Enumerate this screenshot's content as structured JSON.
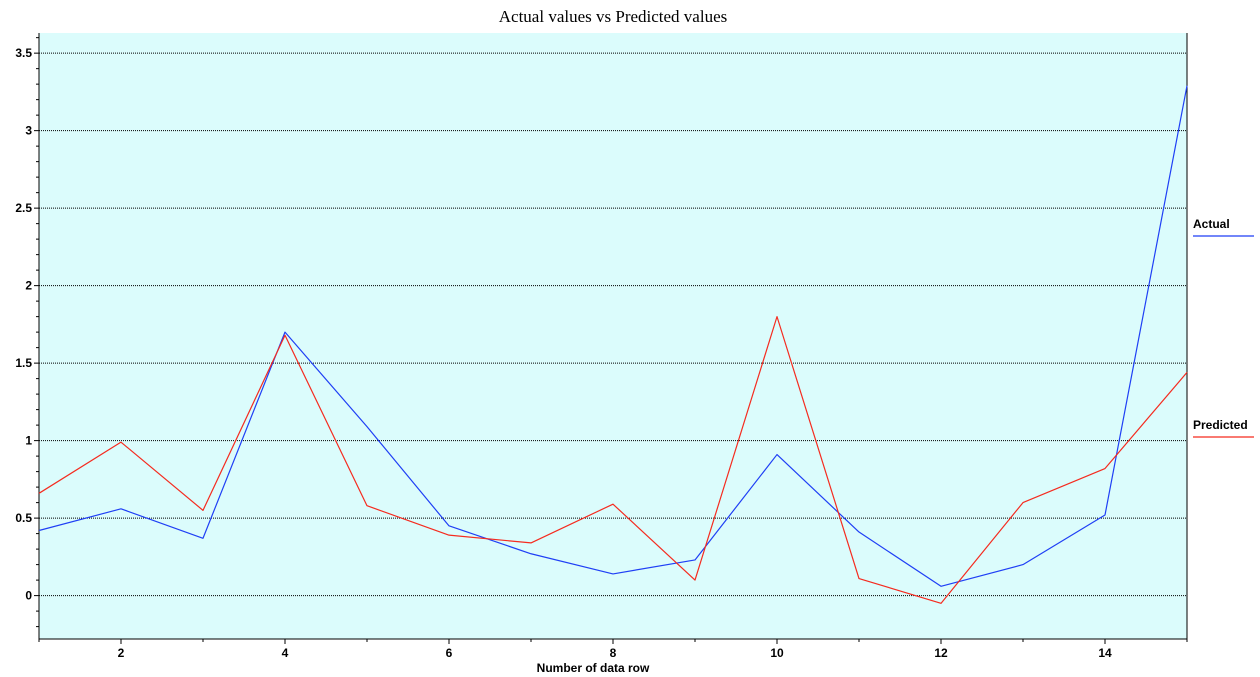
{
  "chart_data": {
    "type": "line",
    "title": "Actual values vs Predicted values",
    "xlabel": "Number of data row",
    "ylabel": "",
    "x": [
      1,
      2,
      3,
      4,
      5,
      6,
      7,
      8,
      9,
      10,
      11,
      12,
      13,
      14,
      15
    ],
    "xlim": [
      1,
      15
    ],
    "ylim": [
      -0.28,
      3.63
    ],
    "x_ticks": [
      2,
      4,
      6,
      8,
      10,
      12,
      14
    ],
    "x_tick_labels": [
      "2",
      "4",
      "6",
      "8",
      "10",
      "12",
      "14"
    ],
    "y_ticks": [
      0,
      0.5,
      1,
      1.5,
      2,
      2.5,
      3,
      3.5
    ],
    "y_tick_labels": [
      "0",
      "0.5",
      "1",
      "1.5",
      "2",
      "2.5",
      "3",
      "3.5"
    ],
    "grid": true,
    "legend_position": "right",
    "background_color": "#dbfcfc",
    "series": [
      {
        "name": "Actual",
        "color": "#1f3ff5",
        "values": [
          0.42,
          0.56,
          0.37,
          1.7,
          1.09,
          0.45,
          0.27,
          0.14,
          0.23,
          0.91,
          0.41,
          0.06,
          0.2,
          0.52,
          3.29
        ]
      },
      {
        "name": "Predicted",
        "color": "#f52b1f",
        "values": [
          0.66,
          0.99,
          0.55,
          1.68,
          0.58,
          0.39,
          0.34,
          0.59,
          0.1,
          1.8,
          0.11,
          -0.05,
          0.6,
          0.82,
          1.44
        ]
      }
    ]
  }
}
